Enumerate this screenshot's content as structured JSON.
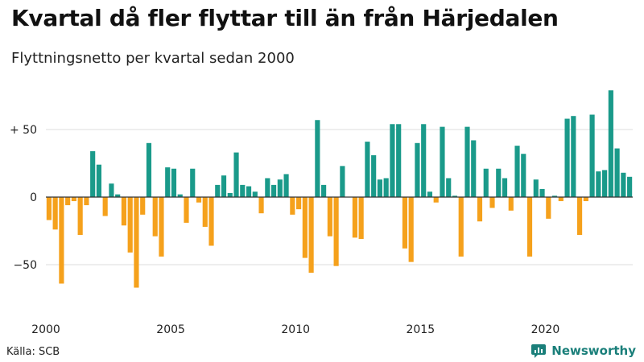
{
  "header": {
    "title": "Kvartal då fler flyttar till än från Härjedalen",
    "subtitle": "Flyttningsnetto per kvartal sedan 2000"
  },
  "footer": {
    "source": "Källa: SCB",
    "brand": "Newsworthy"
  },
  "colors": {
    "positive": "#1a9a8a",
    "negative": "#f5a11c",
    "grid": "#dddddd",
    "axis": "#333333",
    "brand": "#1a7f7a"
  },
  "chart_data": {
    "type": "bar",
    "title": "Kvartal då fler flyttar till än från Härjedalen",
    "subtitle": "Flyttningsnetto per kvartal sedan 2000",
    "xlabel": "",
    "ylabel": "",
    "x_start": "2000 Q1",
    "ylim": [
      -85,
      85
    ],
    "yticks": [
      {
        "value": 50,
        "label": "+ 50"
      },
      {
        "value": 0,
        "label": "0"
      },
      {
        "value": -50,
        "label": "−50"
      }
    ],
    "xticks": [
      {
        "value": 2000,
        "label": "2000"
      },
      {
        "value": 2005,
        "label": "2005"
      },
      {
        "value": 2010,
        "label": "2010"
      },
      {
        "value": 2015,
        "label": "2015"
      },
      {
        "value": 2020,
        "label": "2020"
      }
    ],
    "grid": true,
    "legend": "none",
    "values": [
      -17,
      -24,
      -64,
      -6,
      -3,
      -28,
      -6,
      34,
      24,
      -14,
      10,
      2,
      -21,
      -41,
      -67,
      -13,
      40,
      -29,
      -44,
      22,
      21,
      2,
      -19,
      21,
      -4,
      -22,
      -36,
      9,
      16,
      3,
      33,
      9,
      8,
      4,
      -12,
      14,
      9,
      13,
      17,
      -13,
      -9,
      -45,
      -56,
      57,
      9,
      -29,
      -51,
      23,
      0,
      -30,
      -31,
      41,
      31,
      13,
      14,
      54,
      54,
      -38,
      -48,
      40,
      54,
      4,
      -4,
      52,
      14,
      1,
      -44,
      52,
      42,
      -18,
      21,
      -8,
      21,
      14,
      -10,
      38,
      32,
      -44,
      13,
      6,
      -16,
      1,
      -3,
      58,
      60,
      -28,
      -3,
      61,
      19,
      20,
      79,
      36,
      18,
      15
    ]
  }
}
